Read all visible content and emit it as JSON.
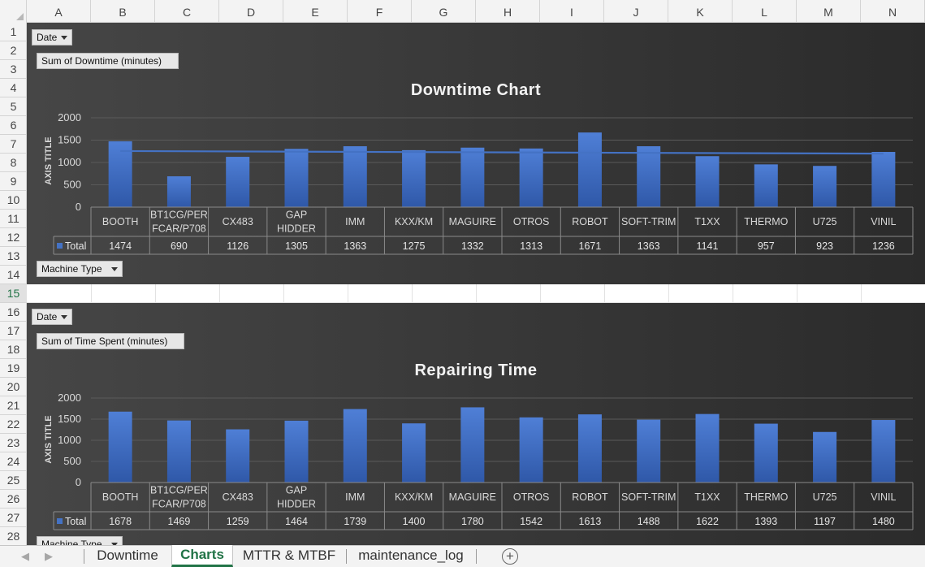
{
  "spreadsheet": {
    "columns": [
      "A",
      "B",
      "C",
      "D",
      "E",
      "F",
      "G",
      "H",
      "I",
      "J",
      "K",
      "L",
      "M",
      "N"
    ],
    "rows": [
      "1",
      "2",
      "3",
      "4",
      "5",
      "6",
      "7",
      "8",
      "9",
      "10",
      "11",
      "12",
      "13",
      "14",
      "15",
      "16",
      "17",
      "18",
      "19",
      "20",
      "21",
      "22",
      "23",
      "24",
      "25",
      "26",
      "27",
      "28"
    ],
    "active_row": "15"
  },
  "charts": [
    {
      "filter_label": "Date",
      "value_field": "Sum of Downtime (minutes)",
      "title": "Downtime Chart",
      "axis_title": "AXIS TITLE",
      "row_field": "Machine Type",
      "legend_label": "Total",
      "has_trendline": true
    },
    {
      "filter_label": "Date",
      "value_field": "Sum of Time Spent (minutes)",
      "title": "Repairing Time",
      "axis_title": "AXIS TITLE",
      "row_field": "Machine Type",
      "legend_label": "Total",
      "has_trendline": false
    }
  ],
  "chart_data": [
    {
      "type": "bar",
      "title": "Downtime Chart",
      "ylabel": "AXIS TITLE",
      "ylim": [
        0,
        2000
      ],
      "yticks": [
        "0",
        "500",
        "1000",
        "1500",
        "2000"
      ],
      "categories": [
        "BOOTH",
        "BT1CG/PER FCAR/P708",
        "CX483",
        "GAP HIDDER",
        "IMM",
        "KXX/KM",
        "MAGUIRE",
        "OTROS",
        "ROBOT",
        "SOFT-TRIM",
        "T1XX",
        "THERMO",
        "U725",
        "VINIL"
      ],
      "category_lines": [
        [
          "BOOTH"
        ],
        [
          "BT1CG/PER",
          "FCAR/P708"
        ],
        [
          "CX483"
        ],
        [
          "GAP",
          "HIDDER"
        ],
        [
          "IMM"
        ],
        [
          "KXX/KM"
        ],
        [
          "MAGUIRE"
        ],
        [
          "OTROS"
        ],
        [
          "ROBOT"
        ],
        [
          "SOFT-TRIM"
        ],
        [
          "T1XX"
        ],
        [
          "THERMO"
        ],
        [
          "U725"
        ],
        [
          "VINIL"
        ]
      ],
      "series": [
        {
          "name": "Total",
          "values": [
            1474,
            690,
            1126,
            1305,
            1363,
            1275,
            1332,
            1313,
            1671,
            1363,
            1141,
            957,
            923,
            1236
          ],
          "color": "#4472c4"
        }
      ],
      "trendline": "linear",
      "data_table": true,
      "grid": true
    },
    {
      "type": "bar",
      "title": "Repairing Time",
      "ylabel": "AXIS TITLE",
      "ylim": [
        0,
        2000
      ],
      "yticks": [
        "0",
        "500",
        "1000",
        "1500",
        "2000"
      ],
      "categories": [
        "BOOTH",
        "BT1CG/PER FCAR/P708",
        "CX483",
        "GAP HIDDER",
        "IMM",
        "KXX/KM",
        "MAGUIRE",
        "OTROS",
        "ROBOT",
        "SOFT-TRIM",
        "T1XX",
        "THERMO",
        "U725",
        "VINIL"
      ],
      "category_lines": [
        [
          "BOOTH"
        ],
        [
          "BT1CG/PER",
          "FCAR/P708"
        ],
        [
          "CX483"
        ],
        [
          "GAP",
          "HIDDER"
        ],
        [
          "IMM"
        ],
        [
          "KXX/KM"
        ],
        [
          "MAGUIRE"
        ],
        [
          "OTROS"
        ],
        [
          "ROBOT"
        ],
        [
          "SOFT-TRIM"
        ],
        [
          "T1XX"
        ],
        [
          "THERMO"
        ],
        [
          "U725"
        ],
        [
          "VINIL"
        ]
      ],
      "series": [
        {
          "name": "Total",
          "values": [
            1678,
            1469,
            1259,
            1464,
            1739,
            1400,
            1780,
            1542,
            1613,
            1488,
            1622,
            1393,
            1197,
            1480
          ],
          "color": "#4472c4"
        }
      ],
      "data_table": true,
      "grid": true
    }
  ],
  "sheet_tabs": {
    "tabs": [
      {
        "label": "Downtime",
        "active": false
      },
      {
        "label": "Charts",
        "active": true
      },
      {
        "label": "MTTR & MTBF",
        "active": false
      },
      {
        "label": "maintenance_log",
        "active": false
      }
    ],
    "add_sheet_label": "+"
  },
  "colors": {
    "accent": "#217346",
    "bar": "#4472c4",
    "chart_bg_start": "#464646",
    "chart_bg_end": "#2b2b2b"
  },
  "icons": {
    "filter_dropdown": "chevron-down-icon",
    "sheet_nav_prev": "chevron-left-icon",
    "sheet_nav_next": "chevron-right-icon",
    "add_sheet": "plus-circle-icon"
  }
}
